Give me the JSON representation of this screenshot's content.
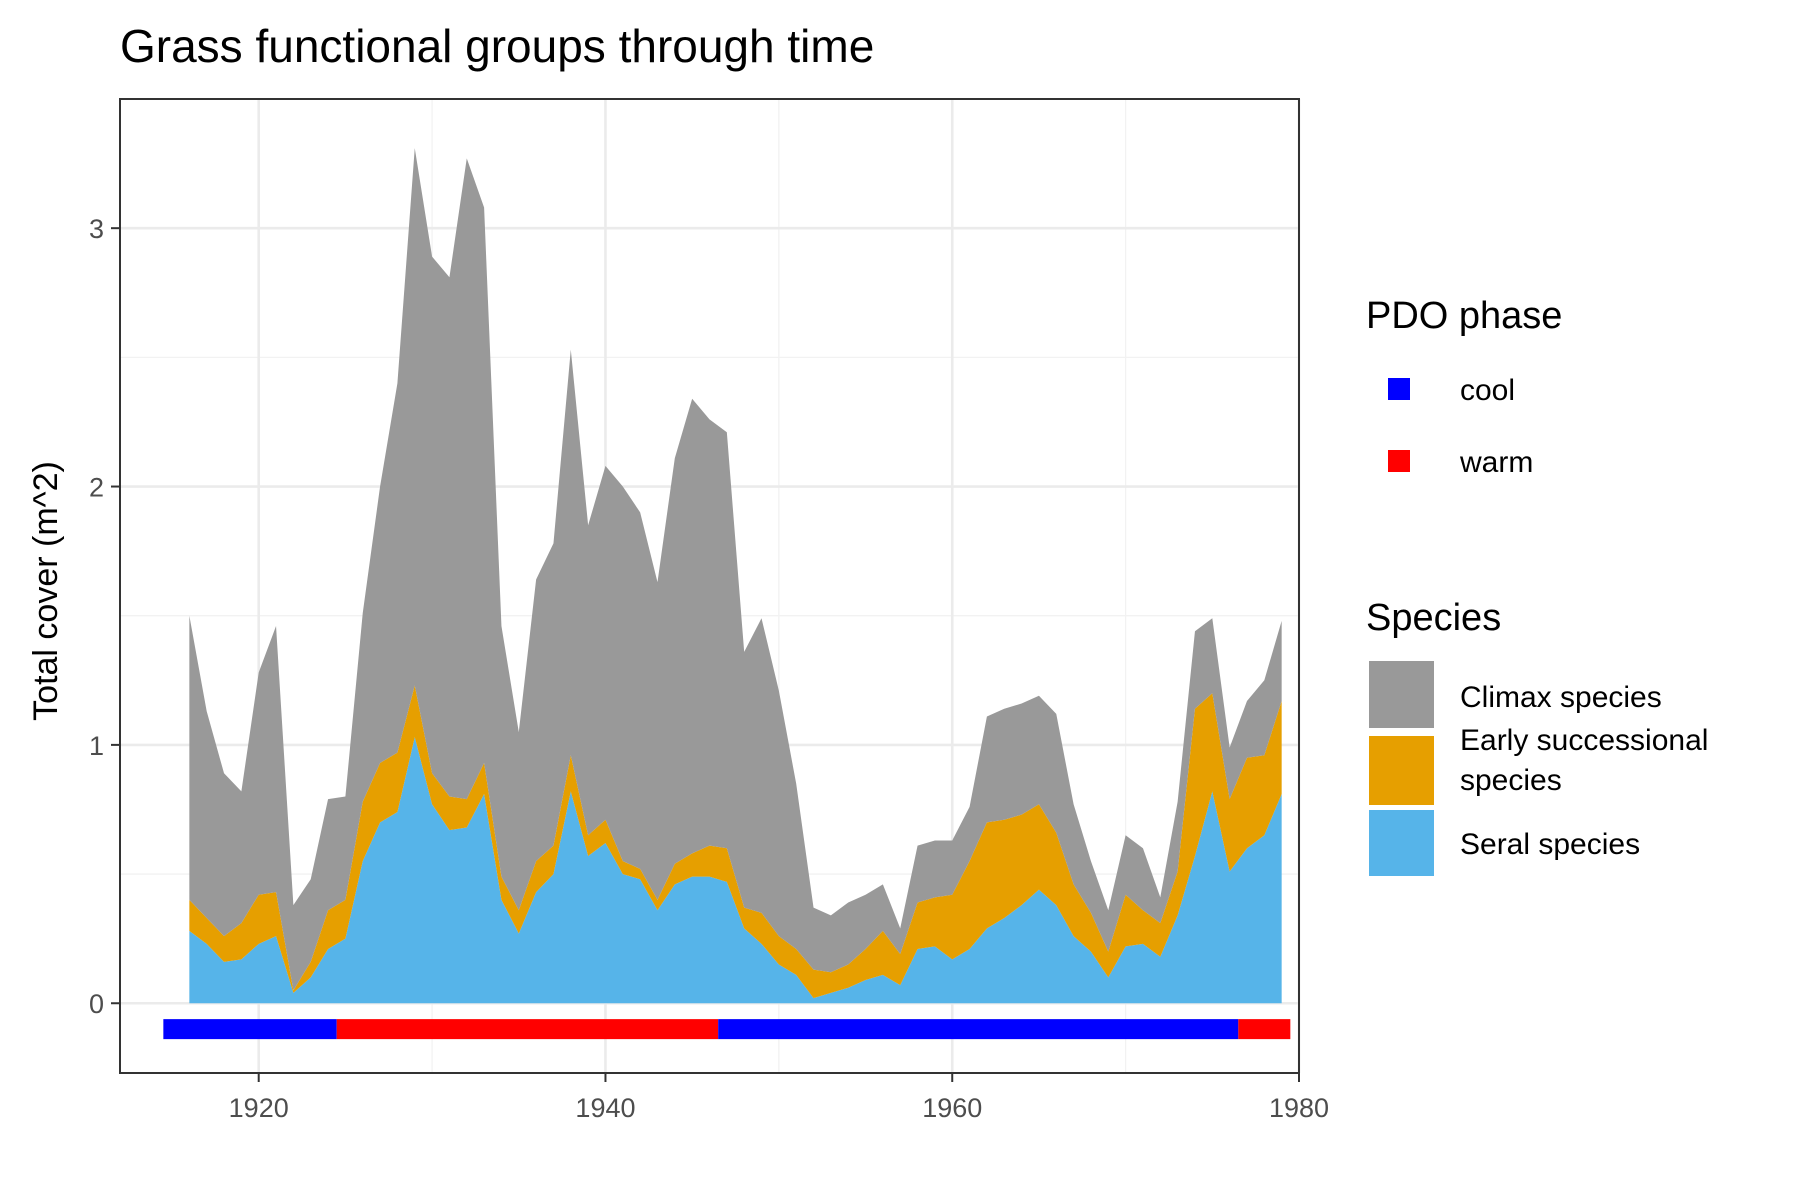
{
  "chart_data": {
    "type": "area",
    "title": "Grass functional groups through time",
    "xlabel": "",
    "ylabel": "Total cover (m^2)",
    "xlim": [
      1912,
      1980
    ],
    "ylim": [
      -0.27,
      3.5
    ],
    "x_ticks": [
      1920,
      1940,
      1960,
      1980
    ],
    "y_ticks": [
      0,
      1,
      2,
      3
    ],
    "grid": true,
    "stacked": true,
    "x": [
      1916,
      1917,
      1918,
      1919,
      1920,
      1921,
      1922,
      1923,
      1924,
      1925,
      1926,
      1927,
      1928,
      1929,
      1930,
      1931,
      1932,
      1933,
      1934,
      1935,
      1936,
      1937,
      1938,
      1939,
      1940,
      1941,
      1942,
      1943,
      1944,
      1945,
      1946,
      1947,
      1948,
      1949,
      1950,
      1951,
      1952,
      1953,
      1954,
      1955,
      1956,
      1957,
      1958,
      1959,
      1960,
      1961,
      1962,
      1963,
      1964,
      1965,
      1966,
      1967,
      1968,
      1969,
      1970,
      1971,
      1972,
      1973,
      1974,
      1975,
      1976,
      1977,
      1978,
      1979
    ],
    "series": [
      {
        "name": "Seral species",
        "color": "#56B4E9",
        "values": [
          0.28,
          0.23,
          0.16,
          0.17,
          0.23,
          0.26,
          0.04,
          0.1,
          0.21,
          0.25,
          0.55,
          0.7,
          0.74,
          1.03,
          0.77,
          0.67,
          0.68,
          0.81,
          0.4,
          0.27,
          0.43,
          0.5,
          0.82,
          0.57,
          0.62,
          0.5,
          0.48,
          0.36,
          0.46,
          0.49,
          0.49,
          0.47,
          0.29,
          0.23,
          0.15,
          0.11,
          0.02,
          0.04,
          0.06,
          0.09,
          0.11,
          0.07,
          0.21,
          0.22,
          0.17,
          0.21,
          0.29,
          0.33,
          0.38,
          0.44,
          0.38,
          0.26,
          0.2,
          0.1,
          0.22,
          0.23,
          0.18,
          0.34,
          0.57,
          0.82,
          0.51,
          0.6,
          0.65,
          0.81
        ]
      },
      {
        "name": "Early successional species",
        "color": "#E69F00",
        "values": [
          0.12,
          0.1,
          0.1,
          0.14,
          0.19,
          0.17,
          0.01,
          0.06,
          0.15,
          0.15,
          0.23,
          0.23,
          0.23,
          0.2,
          0.12,
          0.13,
          0.11,
          0.12,
          0.09,
          0.09,
          0.12,
          0.11,
          0.14,
          0.08,
          0.09,
          0.05,
          0.04,
          0.04,
          0.08,
          0.09,
          0.12,
          0.13,
          0.08,
          0.12,
          0.11,
          0.1,
          0.11,
          0.08,
          0.09,
          0.12,
          0.17,
          0.12,
          0.18,
          0.19,
          0.25,
          0.34,
          0.41,
          0.38,
          0.35,
          0.33,
          0.28,
          0.2,
          0.15,
          0.1,
          0.2,
          0.13,
          0.13,
          0.17,
          0.57,
          0.38,
          0.28,
          0.35,
          0.31,
          0.36
        ]
      },
      {
        "name": "Climax species",
        "color": "#999999",
        "values": [
          1.1,
          0.8,
          0.63,
          0.51,
          0.86,
          1.03,
          0.33,
          0.32,
          0.43,
          0.4,
          0.73,
          1.07,
          1.43,
          2.08,
          2.0,
          2.01,
          2.48,
          2.15,
          0.97,
          0.69,
          1.09,
          1.17,
          1.57,
          1.2,
          1.37,
          1.45,
          1.38,
          1.23,
          1.57,
          1.76,
          1.65,
          1.61,
          0.99,
          1.14,
          0.95,
          0.64,
          0.24,
          0.22,
          0.24,
          0.21,
          0.18,
          0.1,
          0.22,
          0.22,
          0.21,
          0.21,
          0.41,
          0.43,
          0.43,
          0.42,
          0.46,
          0.31,
          0.2,
          0.16,
          0.23,
          0.24,
          0.1,
          0.27,
          0.3,
          0.29,
          0.2,
          0.22,
          0.29,
          0.31
        ]
      }
    ],
    "pdo_phase": {
      "name": "PDO phase",
      "y": -0.1,
      "segments": [
        {
          "phase": "cool",
          "start": 1914.5,
          "end": 1924.5,
          "color": "#0000FF"
        },
        {
          "phase": "warm",
          "start": 1924.5,
          "end": 1946.5,
          "color": "#FF0000"
        },
        {
          "phase": "cool",
          "start": 1946.5,
          "end": 1976.5,
          "color": "#0000FF"
        },
        {
          "phase": "warm",
          "start": 1976.5,
          "end": 1979.5,
          "color": "#FF0000"
        }
      ]
    },
    "legends": [
      {
        "title": "PDO phase",
        "items": [
          {
            "label": "cool",
            "color": "#0000FF"
          },
          {
            "label": "warm",
            "color": "#FF0000"
          }
        ]
      },
      {
        "title": "Species",
        "items": [
          {
            "label": "Climax species",
            "color": "#999999"
          },
          {
            "label": "Early successional",
            "label2": " species",
            "color": "#E69F00"
          },
          {
            "label": "Seral species",
            "color": "#56B4E9"
          }
        ]
      }
    ],
    "legend_position": "right"
  },
  "colors": {
    "panel_border": "#333333",
    "grid_major": "#ebebeb",
    "grid_minor": "#f2f2f2",
    "background": "#ffffff"
  }
}
